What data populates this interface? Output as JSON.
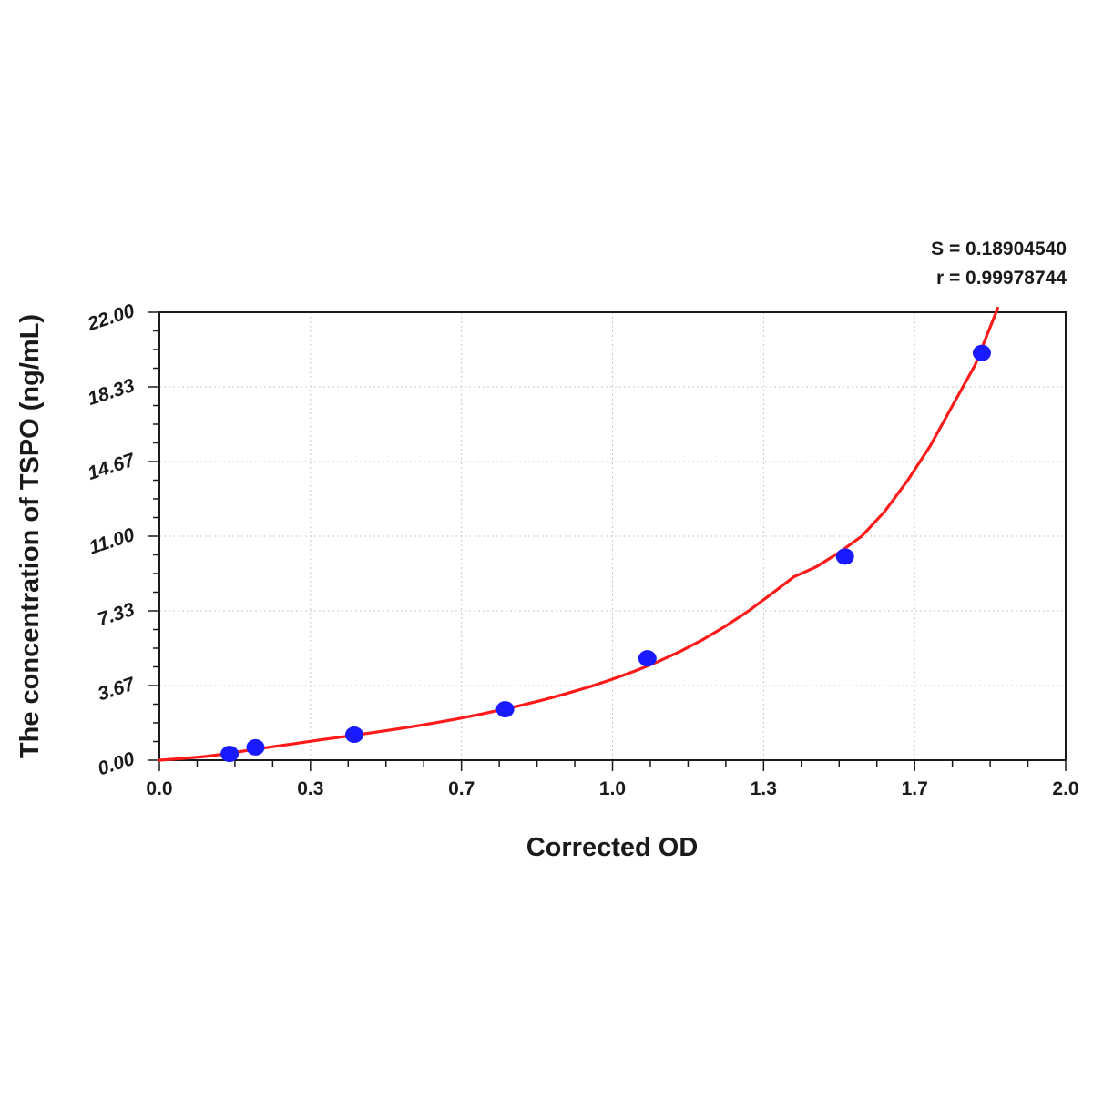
{
  "chart_data": {
    "type": "scatter",
    "xlabel": "Corrected OD",
    "ylabel": "The concentration of TSPO (ng/mL)",
    "xlim": [
      0.0,
      2.0
    ],
    "ylim": [
      0.0,
      22.0
    ],
    "x_ticks": [
      "0.0",
      "0.3",
      "0.7",
      "1.0",
      "1.3",
      "1.7",
      "2.0"
    ],
    "y_ticks": [
      "0.00",
      "3.67",
      "7.33",
      "11.00",
      "14.67",
      "18.33",
      "22.00"
    ],
    "grid": true,
    "annotations": [
      "S = 0.18904540",
      "r = 0.99978744"
    ],
    "series": [
      {
        "type": "scatter",
        "color": "#1a1aff",
        "x": [
          0.155,
          0.212,
          0.43,
          0.763,
          1.077,
          1.513,
          1.815
        ],
        "y": [
          0.31,
          0.63,
          1.25,
          2.5,
          5.0,
          10.0,
          20.0
        ]
      },
      {
        "type": "line",
        "color": "#ff1a1a",
        "x": [
          0.0,
          0.05,
          0.1,
          0.15,
          0.2,
          0.25,
          0.3,
          0.35,
          0.4,
          0.45,
          0.5,
          0.55,
          0.6,
          0.65,
          0.7,
          0.75,
          0.8,
          0.85,
          0.9,
          0.95,
          1.0,
          1.05,
          1.1,
          1.15,
          1.2,
          1.25,
          1.3,
          1.35,
          1.4,
          1.45,
          1.5,
          1.55,
          1.6,
          1.65,
          1.7,
          1.75,
          1.8,
          1.85
        ],
        "y": [
          0.0,
          0.08,
          0.18,
          0.32,
          0.5,
          0.66,
          0.82,
          0.98,
          1.13,
          1.29,
          1.45,
          1.62,
          1.8,
          2.0,
          2.22,
          2.45,
          2.7,
          2.98,
          3.28,
          3.61,
          3.98,
          4.38,
          4.84,
          5.35,
          5.93,
          6.59,
          7.33,
          8.15,
          9.0,
          9.5,
          10.2,
          11.0,
          12.2,
          13.7,
          15.4,
          17.4,
          19.4,
          22.2
        ]
      }
    ]
  }
}
